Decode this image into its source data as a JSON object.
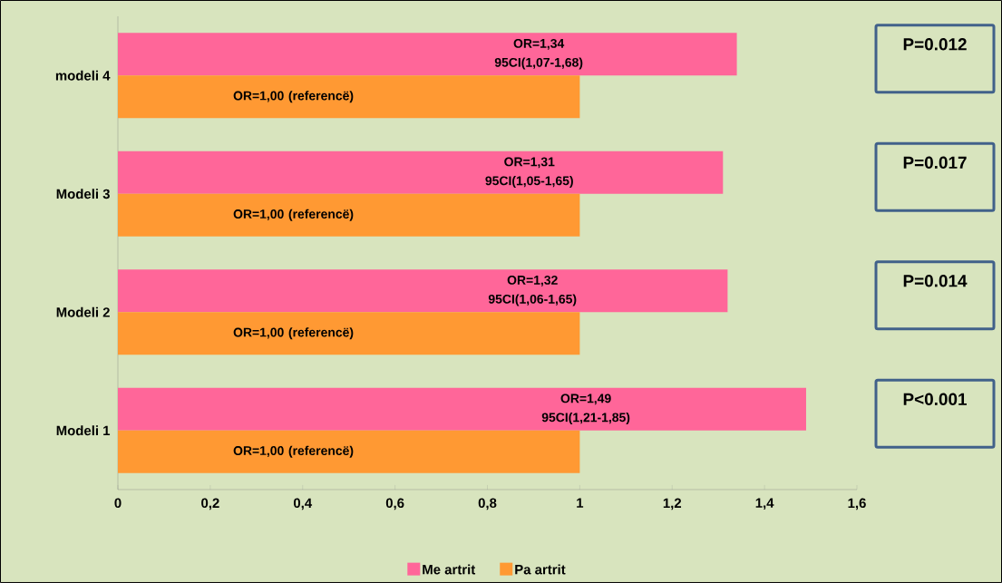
{
  "chart_data": {
    "type": "bar",
    "orientation": "horizontal",
    "categories": [
      "modeli 4",
      "Modeli 3",
      "Modeli 2",
      "Modeli 1"
    ],
    "series": [
      {
        "name": "Me artrit",
        "color": "#ff6699",
        "values": [
          1.34,
          1.31,
          1.32,
          1.49
        ],
        "value_labels": [
          "OR=1,34 95CI(1,07-1,68)",
          "OR=1,31 95CI(1,05-1,65)",
          "OR=1,32 95CI(1,06-1,65)",
          "OR=1,49 95CI(1,21-1,85)"
        ]
      },
      {
        "name": "Pa artrit",
        "color": "#ff9933",
        "values": [
          1,
          1,
          1,
          1
        ],
        "value_labels": [
          "OR=1,00 (referencë)",
          "OR=1,00 (referencë)",
          "OR=1,00 (referencë)",
          "OR=1,00 (referencë)"
        ]
      }
    ],
    "xlim": [
      0,
      1.6
    ],
    "xticks": [
      0,
      {
        "value": 0.2,
        "label": "0,2"
      },
      {
        "value": 0.4,
        "label": "0,4"
      },
      {
        "value": 0.6,
        "label": "0,6"
      },
      {
        "value": 0.8,
        "label": "0,8"
      },
      1,
      {
        "value": 1.2,
        "label": "1,2"
      },
      {
        "value": 1.4,
        "label": "1,4"
      },
      {
        "value": 1.6,
        "label": "1,6"
      }
    ],
    "annotations": [
      "P=0.012",
      "P=0.017",
      "P=0.014",
      "P<0.001"
    ],
    "grid": false,
    "legend": "bottom"
  }
}
